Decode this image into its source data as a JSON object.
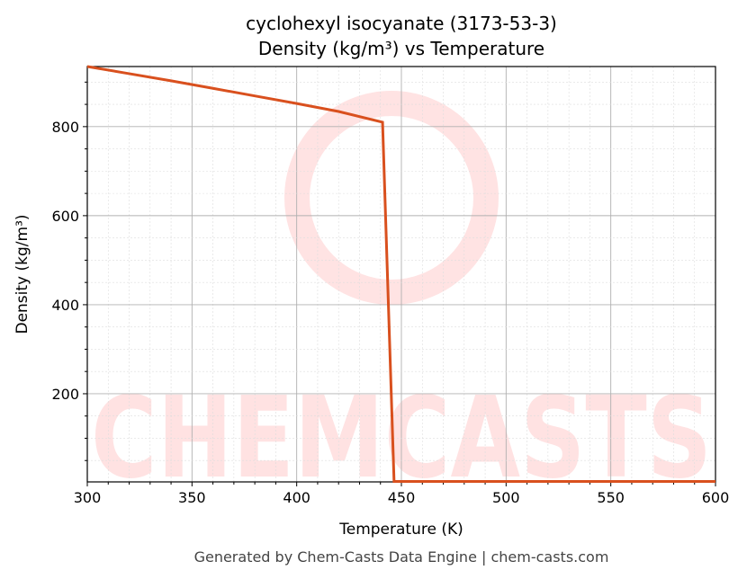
{
  "chart_data": {
    "type": "line",
    "title": "cyclohexyl isocyanate (3173-53-3)",
    "subtitle": "Density (kg/m³) vs Temperature",
    "xlabel": "Temperature (K)",
    "ylabel": "Density (kg/m³)",
    "xlim": [
      300,
      600
    ],
    "ylim": [
      2,
      935
    ],
    "xticks": [
      300,
      350,
      400,
      450,
      500,
      550,
      600
    ],
    "yticks": [
      200,
      400,
      600,
      800
    ],
    "grid": true,
    "series": [
      {
        "name": "Density",
        "color": "#d9501e",
        "x": [
          300,
          320,
          340,
          360,
          380,
          400,
          420,
          441,
          446.5,
          450,
          500,
          550,
          600
        ],
        "y": [
          935,
          919,
          903,
          886,
          869,
          852,
          834,
          810,
          3,
          3,
          3,
          3,
          3
        ]
      }
    ],
    "watermark": "CHEMCASTS"
  },
  "footer": "Generated by Chem-Casts Data Engine | chem-casts.com"
}
